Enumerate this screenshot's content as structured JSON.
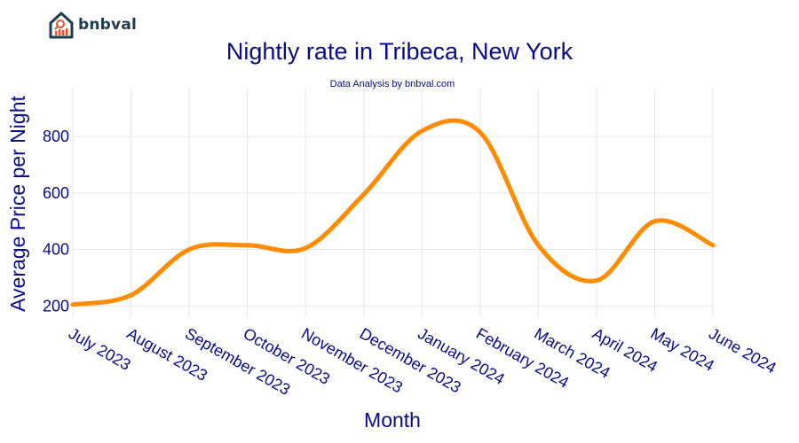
{
  "brand": {
    "name": "bnbval",
    "logo_icon": "house-chart-icon"
  },
  "colors": {
    "title": "#0a0a8c",
    "line": "#ff8c00",
    "grid": "#e6e6e6",
    "logo": "#1f3b4d",
    "logo_accent": "#e8542a"
  },
  "chart_data": {
    "type": "line",
    "title": "Nightly rate in Tribeca, New York",
    "subtitle": "Data Analysis by bnbval.com",
    "xlabel": "Month",
    "ylabel": "Average Price per Night",
    "categories": [
      "July 2023",
      "August 2023",
      "September 2023",
      "October 2023",
      "November 2023",
      "December 2023",
      "January 2024",
      "February 2024",
      "March 2024",
      "April 2024",
      "May 2024",
      "June 2024"
    ],
    "series": [
      {
        "values": [
          205,
          238,
          400,
          415,
          405,
          595,
          820,
          815,
          415,
          290,
          500,
          415
        ]
      }
    ],
    "yticks": [
      200,
      400,
      600,
      800
    ],
    "ylim": [
      160,
      970
    ],
    "grid": true,
    "smooth": true
  }
}
